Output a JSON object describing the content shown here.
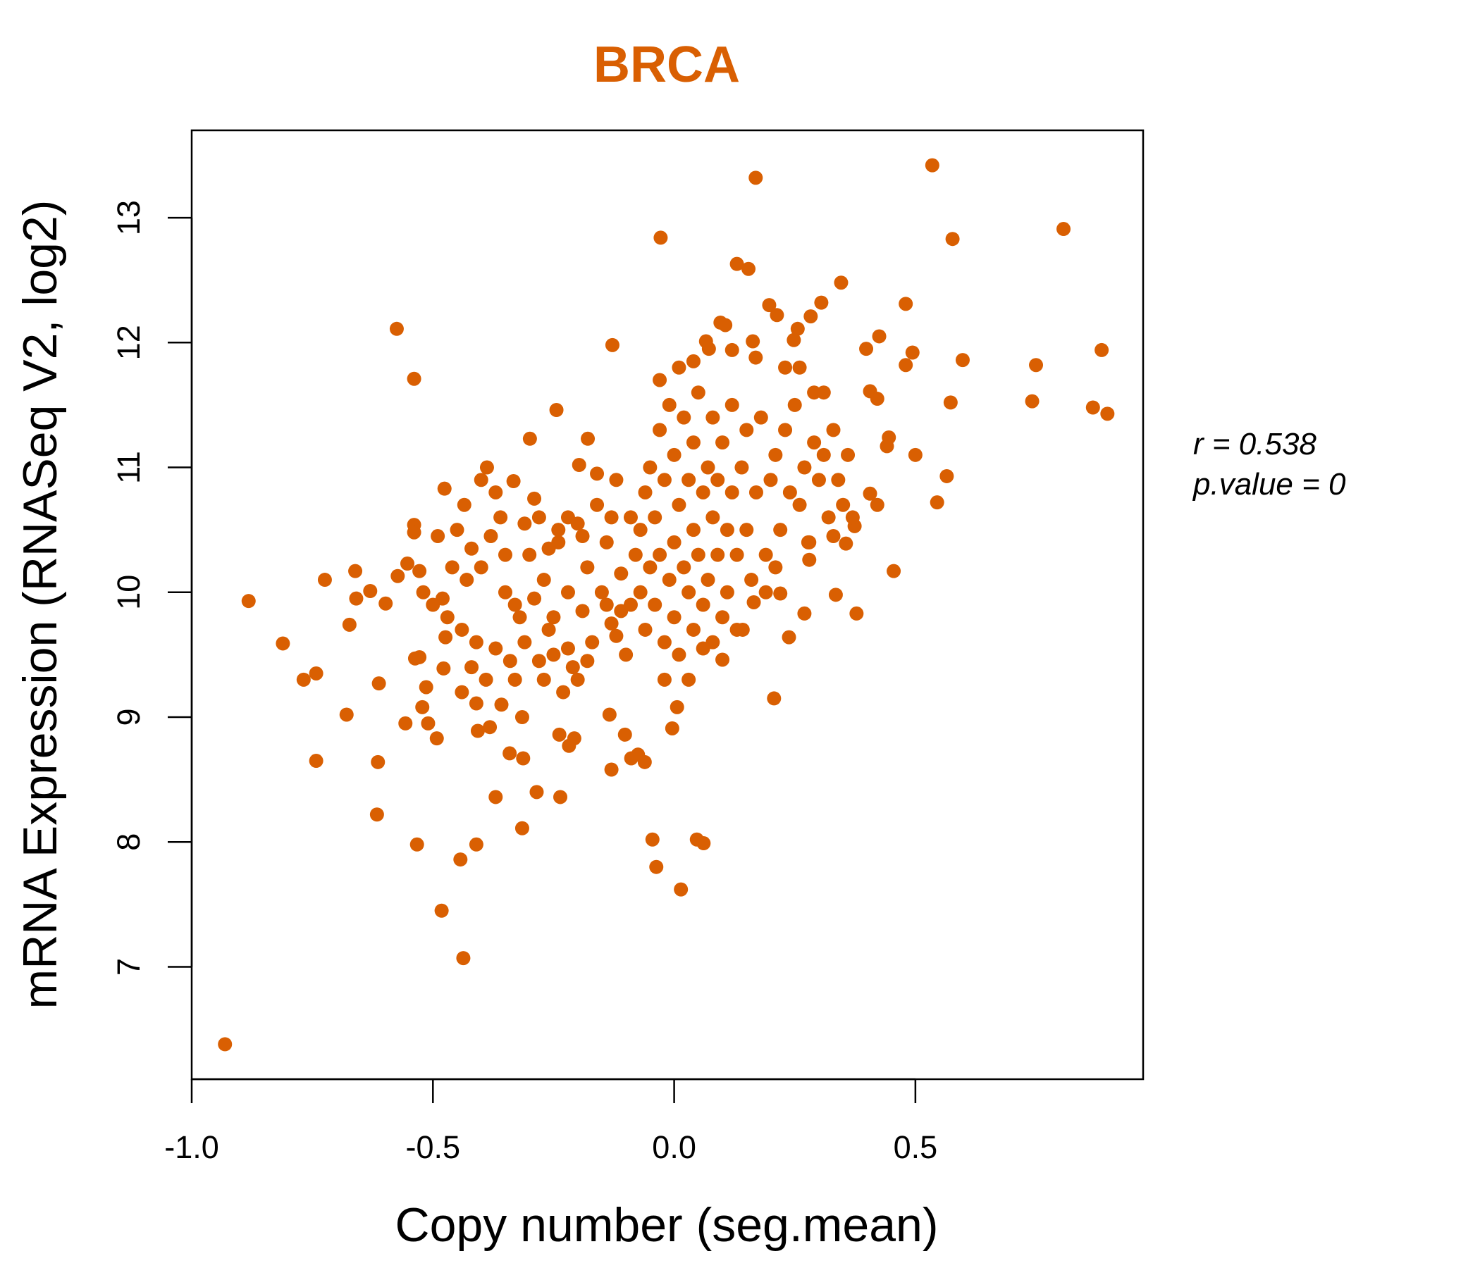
{
  "chart_data": {
    "type": "scatter",
    "title": "BRCA",
    "xlabel": "Copy number (seg.mean)",
    "ylabel": "mRNA Expression (RNASeq V2, log2)",
    "xlim": [
      -1.0,
      0.972
    ],
    "ylim": [
      6.1,
      13.7
    ],
    "xticks": [
      -1.0,
      -0.5,
      0.0,
      0.5
    ],
    "xtick_labels": [
      "-1.0",
      "-0.5",
      "0.0",
      "0.5"
    ],
    "yticks": [
      7,
      8,
      9,
      10,
      11,
      12,
      13
    ],
    "ytick_labels": [
      "7",
      "8",
      "9",
      "10",
      "11",
      "12",
      "13"
    ],
    "grid": false,
    "point_color": "#D95F02",
    "title_color": "#D95F02",
    "annotation": {
      "r_label": "r = 0.538",
      "p_label": "p.value = 0"
    },
    "points": [
      [
        -0.931,
        6.38
      ],
      [
        -0.882,
        9.93
      ],
      [
        -0.811,
        9.59
      ],
      [
        -0.768,
        9.3
      ],
      [
        -0.742,
        9.35
      ],
      [
        -0.742,
        8.65
      ],
      [
        -0.724,
        10.1
      ],
      [
        -0.679,
        9.02
      ],
      [
        -0.673,
        9.74
      ],
      [
        -0.661,
        10.17
      ],
      [
        -0.659,
        9.95
      ],
      [
        -0.63,
        10.01
      ],
      [
        -0.616,
        8.22
      ],
      [
        -0.614,
        8.64
      ],
      [
        -0.612,
        9.27
      ],
      [
        -0.598,
        9.91
      ],
      [
        -0.575,
        12.11
      ],
      [
        -0.573,
        10.13
      ],
      [
        -0.557,
        8.95
      ],
      [
        -0.553,
        10.23
      ],
      [
        -0.539,
        11.71
      ],
      [
        -0.539,
        10.54
      ],
      [
        -0.539,
        10.48
      ],
      [
        -0.537,
        9.47
      ],
      [
        -0.533,
        7.98
      ],
      [
        -0.528,
        9.48
      ],
      [
        -0.528,
        10.17
      ],
      [
        -0.522,
        9.08
      ],
      [
        -0.514,
        9.24
      ],
      [
        -0.51,
        8.95
      ],
      [
        -0.492,
        8.83
      ],
      [
        -0.482,
        7.45
      ],
      [
        -0.478,
        9.39
      ],
      [
        -0.476,
        10.83
      ],
      [
        -0.474,
        9.64
      ],
      [
        -0.443,
        7.86
      ],
      [
        -0.437,
        7.07
      ],
      [
        -0.435,
        10.7
      ],
      [
        -0.41,
        7.98
      ],
      [
        -0.41,
        9.11
      ],
      [
        -0.407,
        8.89
      ],
      [
        -0.388,
        11.0
      ],
      [
        -0.382,
        8.92
      ],
      [
        -0.37,
        8.36
      ],
      [
        -0.358,
        9.1
      ],
      [
        -0.341,
        8.71
      ],
      [
        -0.333,
        10.89
      ],
      [
        -0.315,
        8.11
      ],
      [
        -0.313,
        8.67
      ],
      [
        -0.315,
        9.0
      ],
      [
        -0.299,
        11.23
      ],
      [
        -0.285,
        8.4
      ],
      [
        -0.244,
        11.46
      ],
      [
        -0.236,
        8.36
      ],
      [
        -0.238,
        8.86
      ],
      [
        -0.218,
        8.77
      ],
      [
        -0.207,
        8.83
      ],
      [
        -0.197,
        11.02
      ],
      [
        -0.179,
        11.23
      ],
      [
        -0.134,
        9.02
      ],
      [
        -0.13,
        8.58
      ],
      [
        -0.128,
        11.98
      ],
      [
        -0.102,
        8.86
      ],
      [
        -0.089,
        8.67
      ],
      [
        -0.075,
        8.7
      ],
      [
        -0.061,
        8.64
      ],
      [
        -0.045,
        8.02
      ],
      [
        -0.037,
        7.8
      ],
      [
        -0.028,
        12.84
      ],
      [
        -0.004,
        8.91
      ],
      [
        0.006,
        9.08
      ],
      [
        0.014,
        7.62
      ],
      [
        0.047,
        8.02
      ],
      [
        0.061,
        7.99
      ],
      [
        0.13,
        12.63
      ],
      [
        0.154,
        12.59
      ],
      [
        0.169,
        13.32
      ],
      [
        0.197,
        12.3
      ],
      [
        0.207,
        9.15
      ],
      [
        0.238,
        9.64
      ],
      [
        0.27,
        9.83
      ],
      [
        0.335,
        9.98
      ],
      [
        0.346,
        12.48
      ],
      [
        0.378,
        9.83
      ],
      [
        0.455,
        10.17
      ],
      [
        0.48,
        12.31
      ],
      [
        0.535,
        13.42
      ],
      [
        0.577,
        12.83
      ],
      [
        0.598,
        11.86
      ],
      [
        0.573,
        11.52
      ],
      [
        0.545,
        10.72
      ],
      [
        0.565,
        10.93
      ],
      [
        0.5,
        11.1
      ],
      [
        0.742,
        11.53
      ],
      [
        0.75,
        11.82
      ],
      [
        0.807,
        12.91
      ],
      [
        0.868,
        11.48
      ],
      [
        0.886,
        11.94
      ],
      [
        0.898,
        11.43
      ],
      [
        0.425,
        12.05
      ],
      [
        0.398,
        11.95
      ],
      [
        0.494,
        11.92
      ],
      [
        0.48,
        11.82
      ],
      [
        0.406,
        11.61
      ],
      [
        0.421,
        11.55
      ],
      [
        0.445,
        11.24
      ],
      [
        0.441,
        11.17
      ],
      [
        0.421,
        10.7
      ],
      [
        0.406,
        10.79
      ],
      [
        0.374,
        10.53
      ],
      [
        0.356,
        10.39
      ],
      [
        0.28,
        10.26
      ],
      [
        0.278,
        10.4
      ],
      [
        0.22,
        9.99
      ],
      [
        0.142,
        9.7
      ],
      [
        0.165,
        9.92
      ],
      [
        0.1,
        9.46
      ],
      [
        0.283,
        12.21
      ],
      [
        0.305,
        12.32
      ],
      [
        0.256,
        12.11
      ],
      [
        0.248,
        12.02
      ],
      [
        0.213,
        12.22
      ],
      [
        0.163,
        12.01
      ],
      [
        0.169,
        11.88
      ],
      [
        0.12,
        11.94
      ],
      [
        0.096,
        12.16
      ],
      [
        0.106,
        12.14
      ],
      [
        0.066,
        12.01
      ],
      [
        0.072,
        11.95
      ],
      [
        -0.45,
        10.5
      ],
      [
        -0.42,
        10.35
      ],
      [
        -0.4,
        10.2
      ],
      [
        -0.38,
        10.45
      ],
      [
        -0.36,
        10.6
      ],
      [
        -0.35,
        10.0
      ],
      [
        -0.33,
        9.9
      ],
      [
        -0.32,
        9.8
      ],
      [
        -0.3,
        10.3
      ],
      [
        -0.28,
        10.6
      ],
      [
        -0.27,
        10.1
      ],
      [
        -0.26,
        9.7
      ],
      [
        -0.25,
        9.5
      ],
      [
        -0.24,
        10.4
      ],
      [
        -0.22,
        10.0
      ],
      [
        -0.21,
        9.4
      ],
      [
        -0.2,
        10.55
      ],
      [
        -0.19,
        9.85
      ],
      [
        -0.18,
        10.2
      ],
      [
        -0.17,
        9.6
      ],
      [
        -0.16,
        10.7
      ],
      [
        -0.15,
        10.0
      ],
      [
        -0.14,
        10.4
      ],
      [
        -0.13,
        9.75
      ],
      [
        -0.12,
        10.9
      ],
      [
        -0.11,
        10.15
      ],
      [
        -0.1,
        9.5
      ],
      [
        -0.09,
        10.6
      ],
      [
        -0.47,
        9.8
      ],
      [
        -0.44,
        9.7
      ],
      [
        -0.43,
        10.1
      ],
      [
        -0.41,
        9.6
      ],
      [
        -0.39,
        9.3
      ],
      [
        -0.37,
        9.55
      ],
      [
        -0.34,
        9.45
      ],
      [
        -0.31,
        9.6
      ],
      [
        -0.29,
        9.95
      ],
      [
        -0.27,
        9.3
      ],
      [
        -0.23,
        9.2
      ],
      [
        -0.46,
        10.2
      ],
      [
        -0.48,
        9.95
      ],
      [
        -0.4,
        10.9
      ],
      [
        -0.37,
        10.8
      ],
      [
        -0.35,
        10.3
      ],
      [
        -0.31,
        10.55
      ],
      [
        -0.26,
        10.35
      ],
      [
        -0.22,
        10.6
      ],
      [
        -0.19,
        10.45
      ],
      [
        -0.16,
        10.95
      ],
      [
        -0.14,
        9.9
      ],
      [
        -0.12,
        9.65
      ],
      [
        -0.33,
        9.3
      ],
      [
        -0.28,
        9.45
      ],
      [
        -0.25,
        9.8
      ],
      [
        -0.22,
        9.55
      ],
      [
        -0.2,
        9.3
      ],
      [
        -0.18,
        9.45
      ],
      [
        -0.11,
        9.85
      ],
      [
        -0.44,
        9.2
      ],
      [
        -0.42,
        9.4
      ],
      [
        -0.5,
        9.9
      ],
      [
        -0.52,
        10.0
      ],
      [
        -0.49,
        10.45
      ],
      [
        -0.29,
        10.75
      ],
      [
        -0.24,
        10.5
      ],
      [
        -0.13,
        10.6
      ],
      [
        -0.08,
        10.3
      ],
      [
        -0.09,
        9.9
      ],
      [
        -0.07,
        10.0
      ],
      [
        -0.07,
        10.5
      ],
      [
        -0.06,
        10.8
      ],
      [
        -0.06,
        9.7
      ],
      [
        -0.05,
        10.2
      ],
      [
        -0.05,
        11.0
      ],
      [
        -0.04,
        9.9
      ],
      [
        -0.04,
        10.6
      ],
      [
        -0.03,
        11.3
      ],
      [
        -0.03,
        10.3
      ],
      [
        -0.02,
        9.6
      ],
      [
        -0.02,
        10.9
      ],
      [
        -0.01,
        10.1
      ],
      [
        -0.01,
        11.5
      ],
      [
        0.0,
        10.4
      ],
      [
        0.0,
        9.8
      ],
      [
        0.0,
        11.1
      ],
      [
        0.01,
        10.7
      ],
      [
        0.01,
        9.5
      ],
      [
        0.02,
        10.2
      ],
      [
        0.02,
        11.4
      ],
      [
        0.03,
        10.0
      ],
      [
        0.03,
        10.9
      ],
      [
        0.04,
        9.7
      ],
      [
        0.04,
        10.5
      ],
      [
        0.04,
        11.2
      ],
      [
        0.05,
        10.3
      ],
      [
        0.05,
        11.6
      ],
      [
        0.06,
        9.9
      ],
      [
        0.06,
        10.8
      ],
      [
        0.07,
        10.1
      ],
      [
        0.07,
        11.0
      ],
      [
        0.08,
        9.6
      ],
      [
        0.08,
        10.6
      ],
      [
        0.08,
        11.4
      ],
      [
        0.09,
        10.3
      ],
      [
        0.09,
        10.9
      ],
      [
        0.1,
        9.8
      ],
      [
        0.1,
        11.2
      ],
      [
        0.11,
        10.5
      ],
      [
        0.11,
        10.0
      ],
      [
        0.12,
        10.8
      ],
      [
        0.12,
        11.5
      ],
      [
        0.13,
        10.3
      ],
      [
        0.13,
        9.7
      ],
      [
        0.14,
        11.0
      ],
      [
        0.15,
        10.5
      ],
      [
        0.15,
        11.3
      ],
      [
        0.16,
        10.1
      ],
      [
        0.17,
        10.8
      ],
      [
        -0.03,
        11.7
      ],
      [
        0.01,
        11.8
      ],
      [
        0.04,
        11.85
      ],
      [
        -0.02,
        9.3
      ],
      [
        0.03,
        9.3
      ],
      [
        0.06,
        9.55
      ],
      [
        0.18,
        11.4
      ],
      [
        0.19,
        10.3
      ],
      [
        0.2,
        10.9
      ],
      [
        0.21,
        11.1
      ],
      [
        0.22,
        10.5
      ],
      [
        0.23,
        11.3
      ],
      [
        0.24,
        10.8
      ],
      [
        0.25,
        11.5
      ],
      [
        0.26,
        10.7
      ],
      [
        0.27,
        11.0
      ],
      [
        0.28,
        10.4
      ],
      [
        0.29,
        11.2
      ],
      [
        0.3,
        10.9
      ],
      [
        0.31,
        11.6
      ],
      [
        0.32,
        10.6
      ],
      [
        0.33,
        11.3
      ],
      [
        0.34,
        10.9
      ],
      [
        0.35,
        10.7
      ],
      [
        0.36,
        11.1
      ],
      [
        0.37,
        10.6
      ],
      [
        0.23,
        11.8
      ],
      [
        0.26,
        11.8
      ],
      [
        0.29,
        11.6
      ],
      [
        0.31,
        11.1
      ],
      [
        0.33,
        10.45
      ],
      [
        0.21,
        10.2
      ],
      [
        0.19,
        10.0
      ]
    ]
  }
}
